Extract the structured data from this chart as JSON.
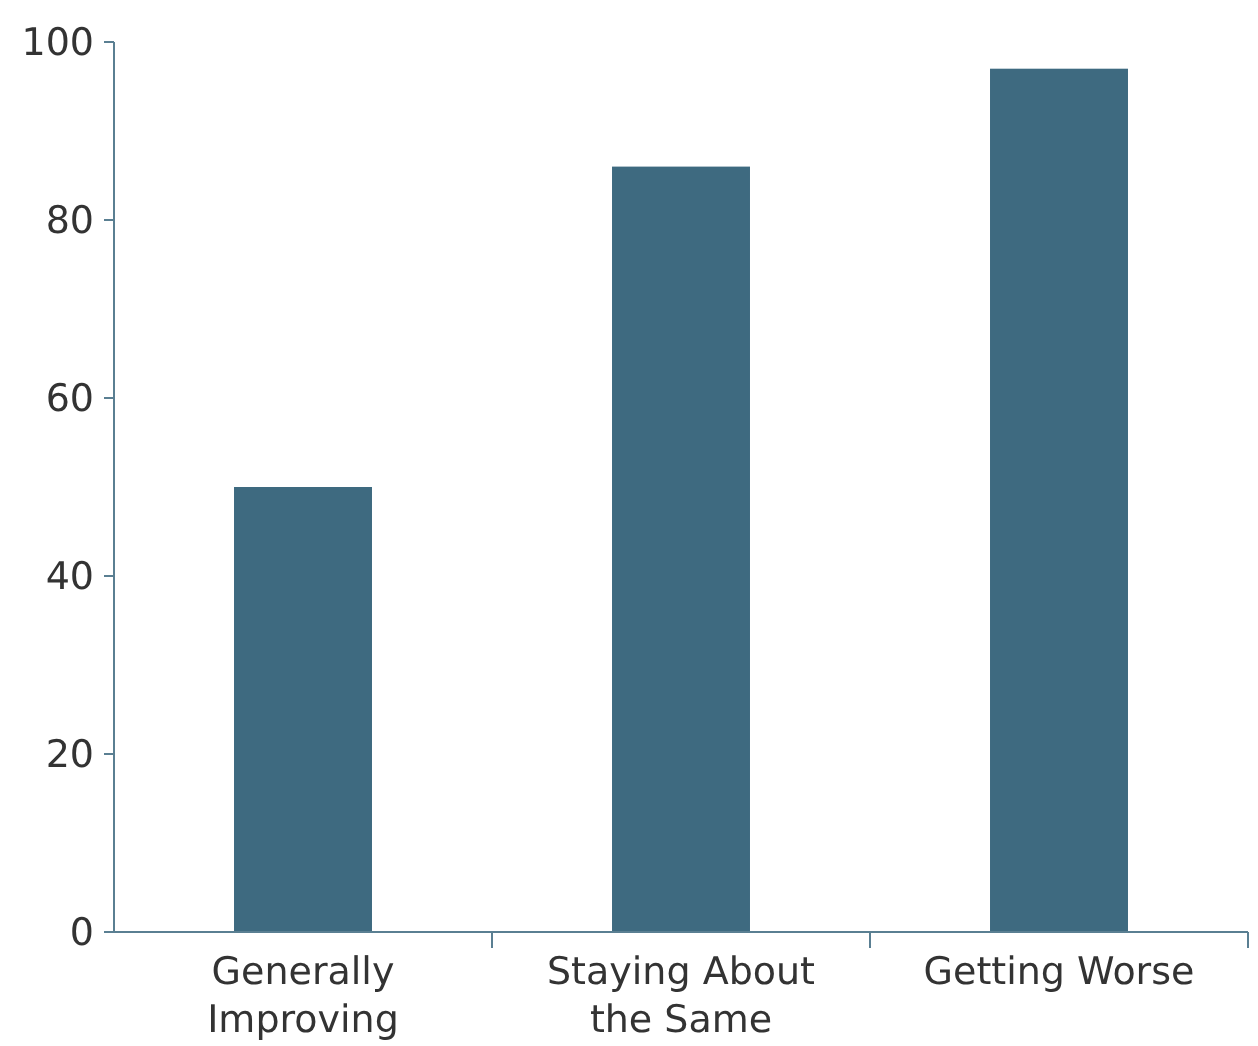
{
  "chart_data": {
    "type": "bar",
    "categories": [
      "Generally Improving",
      "Staying About the Same",
      "Getting Worse"
    ],
    "values": [
      50,
      86,
      97
    ],
    "color": "#3e6a80",
    "ylim": [
      0,
      100
    ],
    "yticks": [
      0,
      20,
      40,
      60,
      80,
      100
    ],
    "grid": false
  }
}
